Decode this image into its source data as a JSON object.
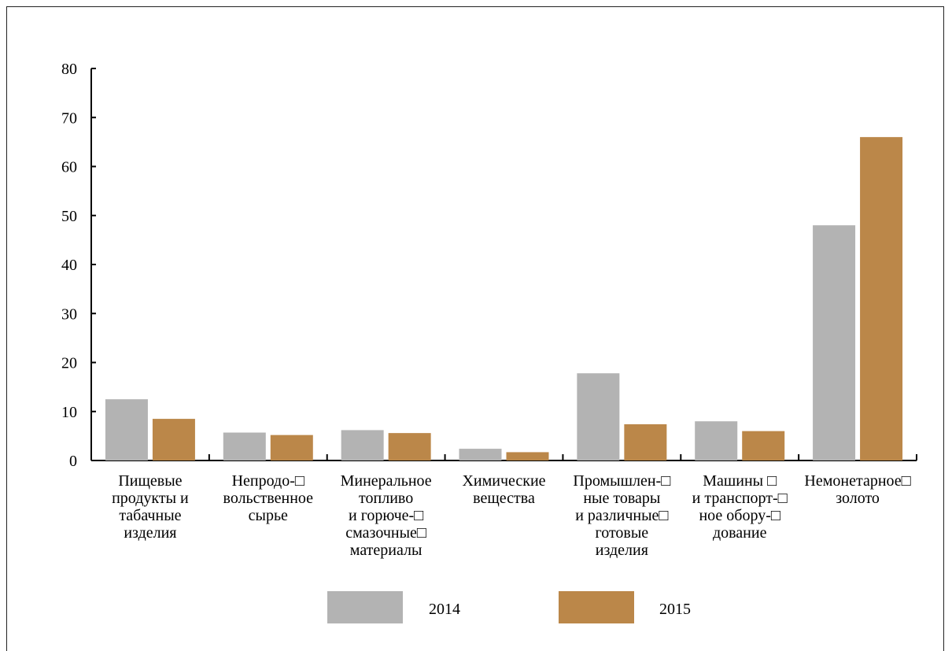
{
  "chart_data": {
    "type": "bar",
    "title": "",
    "xlabel": "",
    "ylabel": "",
    "ylim": [
      0,
      80
    ],
    "y_ticks": [
      "0",
      "10",
      "20",
      "30",
      "40",
      "50",
      "60",
      "70",
      "80"
    ],
    "categories": [
      [
        "Пищевые",
        "продукты и",
        "табачные",
        "изделия"
      ],
      [
        "Непродо-□",
        "вольственное",
        "сырье"
      ],
      [
        "Минеральное",
        "топливо",
        "и горюче-□",
        "смазочные□",
        "материалы"
      ],
      [
        "Химические",
        "вещества"
      ],
      [
        "Промышлен-□",
        "ные товары",
        "и различные□",
        "готовые",
        "изделия"
      ],
      [
        "Машины □",
        "и транспорт-□",
        "ное обору-□",
        "дование"
      ],
      [
        "Немонетарное□",
        "золото"
      ]
    ],
    "series": [
      {
        "name": "2014",
        "color": "#b3b3b3",
        "values": [
          12.5,
          5.7,
          6.2,
          2.4,
          17.8,
          8.0,
          48.0
        ]
      },
      {
        "name": "2015",
        "color": "#bb8749",
        "values": [
          8.5,
          5.2,
          5.6,
          1.7,
          7.4,
          6.0,
          66.0
        ]
      }
    ],
    "legend_position": "bottom",
    "grid": false
  }
}
